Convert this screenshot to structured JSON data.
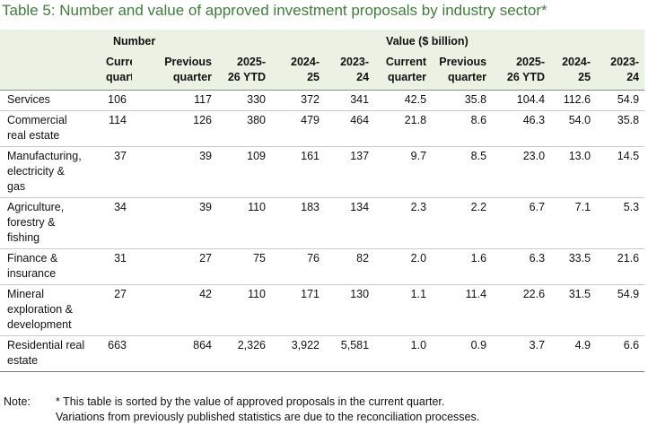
{
  "title": "Table 5: Number and value of approved investment proposals by industry sector*",
  "table": {
    "group_headers": [
      "Number",
      "Value ($ billion)"
    ],
    "column_headers": [
      [
        "Current",
        "quarter"
      ],
      [
        "Previous",
        "quarter"
      ],
      [
        "2025-",
        "26 YTD"
      ],
      [
        "2024-",
        "25"
      ],
      [
        "2023-",
        "24"
      ],
      [
        "Current",
        "quarter"
      ],
      [
        "Previous",
        "quarter"
      ],
      [
        "2025-",
        "26 YTD"
      ],
      [
        "2024-",
        "25"
      ],
      [
        "2023-",
        "24"
      ]
    ],
    "rows": [
      {
        "label": [
          "Services"
        ],
        "cells": [
          "106",
          "117",
          "330",
          "372",
          "341",
          "42.5",
          "35.8",
          "104.4",
          "112.6",
          "54.9"
        ]
      },
      {
        "label": [
          "Commercial",
          "real estate"
        ],
        "cells": [
          "114",
          "126",
          "380",
          "479",
          "464",
          "21.8",
          "8.6",
          "46.3",
          "54.0",
          "35.8"
        ]
      },
      {
        "label": [
          "Manufacturing,",
          "electricity &",
          "gas"
        ],
        "cells": [
          "37",
          "39",
          "109",
          "161",
          "137",
          "9.7",
          "8.5",
          "23.0",
          "13.0",
          "14.5"
        ]
      },
      {
        "label": [
          "Agriculture,",
          "forestry &",
          "fishing"
        ],
        "cells": [
          "34",
          "39",
          "110",
          "183",
          "134",
          "2.3",
          "2.2",
          "6.7",
          "7.1",
          "5.3"
        ]
      },
      {
        "label": [
          "Finance &",
          "insurance"
        ],
        "cells": [
          "31",
          "27",
          "75",
          "76",
          "82",
          "2.0",
          "1.6",
          "6.3",
          "33.5",
          "21.6"
        ]
      },
      {
        "label": [
          "Mineral",
          "exploration &",
          "development"
        ],
        "cells": [
          "27",
          "42",
          "110",
          "171",
          "130",
          "1.1",
          "11.4",
          "22.6",
          "31.5",
          "54.9"
        ]
      },
      {
        "label": [
          "Residential real",
          "estate"
        ],
        "cells": [
          "663",
          "864",
          "2,326",
          "3,922",
          "5,581",
          "1.0",
          "0.9",
          "3.7",
          "4.9",
          "6.6"
        ]
      }
    ]
  },
  "note": {
    "label": "Note:",
    "lines": [
      "* This table is sorted by the value of approved proposals in the current quarter.",
      "Variations from previously published statistics are due to the reconciliation processes."
    ]
  }
}
